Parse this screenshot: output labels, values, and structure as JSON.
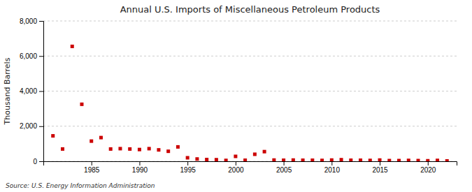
{
  "chart_data": {
    "type": "scatter",
    "title": "Annual U.S. Imports of Miscellaneous Petroleum Products",
    "y_label": "Thousand Barrels",
    "source": "Source: U.S. Energy Information Administration",
    "color": "#cc0000",
    "marker": "square",
    "grid": true,
    "xlim": [
      1980,
      2023
    ],
    "xticks": [
      1985,
      1990,
      1995,
      2000,
      2005,
      2010,
      2015,
      2020
    ],
    "ylim": [
      0,
      8000
    ],
    "yticks": [
      0,
      {
        "value": 2000,
        "label": "2,000"
      },
      {
        "value": 4000,
        "label": "4,000"
      },
      {
        "value": 6000,
        "label": "6,000"
      },
      {
        "value": 8000,
        "label": "8,000"
      }
    ],
    "x": [
      1981,
      1982,
      1983,
      1984,
      1985,
      1986,
      1987,
      1988,
      1989,
      1990,
      1991,
      1992,
      1993,
      1994,
      1995,
      1996,
      1997,
      1998,
      1999,
      2000,
      2001,
      2002,
      2003,
      2004,
      2005,
      2006,
      2007,
      2008,
      2009,
      2010,
      2011,
      2012,
      2013,
      2014,
      2015,
      2016,
      2017,
      2018,
      2019,
      2020,
      2021,
      2022
    ],
    "values": [
      1450,
      700,
      6550,
      3250,
      1150,
      1350,
      700,
      720,
      700,
      670,
      720,
      650,
      570,
      820,
      200,
      130,
      100,
      90,
      50,
      280,
      60,
      400,
      550,
      70,
      60,
      70,
      60,
      60,
      50,
      70,
      90,
      60,
      60,
      50,
      70,
      40,
      40,
      50,
      40,
      30,
      50,
      20
    ]
  }
}
